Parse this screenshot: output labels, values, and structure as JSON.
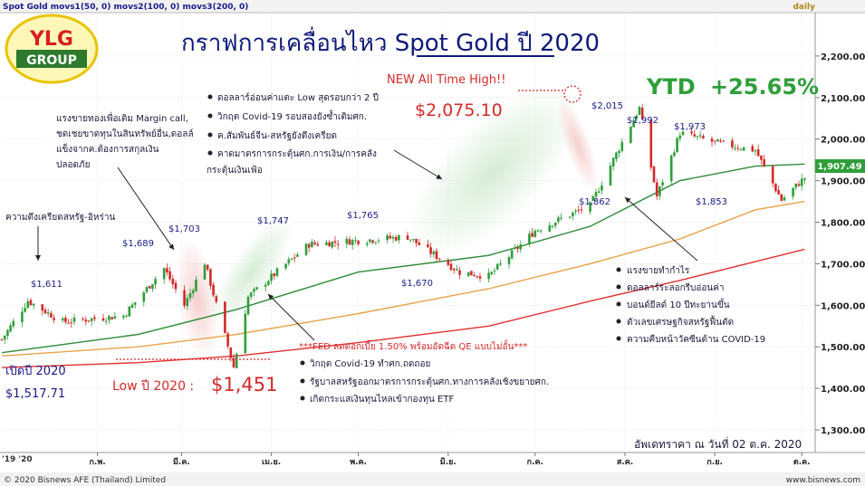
{
  "header": {
    "indicator_text": "Spot Gold  movs1(50, 0)  movs2(100, 0)  movs3(200, 0)",
    "period": "daily"
  },
  "logo": {
    "line1": "YLG",
    "line2": "GROUP"
  },
  "title": "กราฟการเคลื่อนไหว Spot Gold ปี 2020",
  "ytd": {
    "label": "YTD",
    "value": "+25.65%"
  },
  "current_price_tag": "1,907.49",
  "footer": {
    "copyright": "© 2020 Bisnews AFE (Thailand) Limited",
    "site": "www.bisnews.com",
    "updated": "อัพเดทราคา ณ วันที่ 02 ต.ค. 2020",
    "start_label": "'19 '20"
  },
  "annotations": {
    "ath_title": "NEW All Time High!!",
    "ath_value": "$2,075.10",
    "low_label": "Low ปี 2020  :",
    "low_value": "$1,451",
    "open_label": "เปิดปี 2020",
    "open_value": "$1,517.71",
    "tension": "ความตึงเครียดสหรัฐ-อิหร่าน",
    "margin_note": [
      "แรงขายทองเพื่อเติม Margin call,",
      "ชดเชยขาดทุนในสินทรัพย์อื่น,ดอลล์",
      "แข็งจากค.ต้องการสกุลเงิน",
      "ปลอดภัย"
    ],
    "top_bullets": [
      "ดอลลาร์อ่อนค่าแตะ Low สุดรอบกว่า 2 ปี",
      "วิกฤต Covid-19 รอบสองยังซ้ำเติมศก.",
      "ค.สัมพันธ์จีน-สหรัฐยังตึงเครียด",
      "คาดมาตรการกระตุ้นศก.การเงิน/การคลัง"
    ],
    "top_bullets_tail": "กระตุ้นเงินเฟ้อ",
    "fed_bullets": [
      "***FED ลดดอกเบี้ย 1.50% พร้อมอัดฉีด QE แบบไม่อั้น***",
      "วิกฤต Covid-19 ทำศก.ถดถอย",
      "รัฐบาลสหรัฐออกมาตรการกระตุ้นศก.ทางการคลังเชิงขยายศก.",
      "เกิดกระแสเงินทุนไหลเข้ากองทุน ETF"
    ],
    "right_bullets": [
      "แรงขายทำกำไร",
      "ดอลลาร์ระลอกรีบอ่อนค่า",
      "บอนด์ยีลด์ 10 ปีทะยานขึ้น",
      "ตัวเลขเศรษฐกิจสหรัฐฟื้นตัด",
      "ความคืบหน้าวัคซีนต้าน COVID-19"
    ],
    "price_labels": [
      "$1,611",
      "$1,689",
      "$1,703",
      "$1,747",
      "$1,765",
      "$1,670",
      "$2,015",
      "$1,992",
      "$1,973",
      "$1,862",
      "$1,853"
    ]
  },
  "chart_data": {
    "type": "line",
    "title": "กราฟการเคลื่อนไหว Spot Gold ปี 2020",
    "ylim": [
      1250,
      2300
    ],
    "y_ticks": [
      "2,200.00",
      "2,100.00",
      "2,000.00",
      "1,900.00",
      "1,800.00",
      "1,700.00",
      "1,600.00",
      "1,500.00",
      "1,400.00",
      "1,300.00"
    ],
    "x_ticks": [
      "ก.พ.",
      "มี.ค.",
      "เม.ย.",
      "พ.ค.",
      "มิ.ย.",
      "ก.ค.",
      "ส.ค.",
      "ก.ย.",
      "ต.ค."
    ],
    "grid": true,
    "colors": {
      "up": "#2f9e3a",
      "down": "#d42a2a",
      "ma1": "#2e8b37",
      "ma2": "#e8a34a",
      "ma3": "#e03030"
    },
    "series": [
      {
        "name": "movs1(50, 0)",
        "x": [
          "2019-12-30",
          "2020-02-15",
          "2020-03-20",
          "2020-05-01",
          "2020-06-15",
          "2020-07-20",
          "2020-08-20",
          "2020-09-15",
          "2020-10-02"
        ],
        "values": [
          1486,
          1530,
          1590,
          1680,
          1720,
          1790,
          1900,
          1935,
          1940
        ]
      },
      {
        "name": "movs2(100, 0)",
        "x": [
          "2019-12-30",
          "2020-02-15",
          "2020-03-20",
          "2020-05-01",
          "2020-06-15",
          "2020-07-20",
          "2020-08-20",
          "2020-09-15",
          "2020-10-02"
        ],
        "values": [
          1478,
          1500,
          1530,
          1580,
          1640,
          1700,
          1760,
          1830,
          1850
        ]
      },
      {
        "name": "movs3(200, 0)",
        "x": [
          "2019-12-30",
          "2020-02-15",
          "2020-03-20",
          "2020-05-01",
          "2020-06-15",
          "2020-07-20",
          "2020-08-20",
          "2020-09-15",
          "2020-10-02"
        ],
        "values": [
          1450,
          1462,
          1478,
          1510,
          1550,
          1610,
          1660,
          1705,
          1735
        ]
      },
      {
        "name": "Spot Gold",
        "x": [
          "2019-12-30",
          "2020-01-08",
          "2020-01-20",
          "2020-02-10",
          "2020-02-24",
          "2020-03-02",
          "2020-03-09",
          "2020-03-19",
          "2020-03-24",
          "2020-04-14",
          "2020-05-18",
          "2020-06-05",
          "2020-06-15",
          "2020-07-01",
          "2020-07-20",
          "2020-08-06",
          "2020-08-12",
          "2020-08-20",
          "2020-09-01",
          "2020-09-15",
          "2020-09-24",
          "2020-10-02"
        ],
        "values": [
          1517.71,
          1611,
          1560,
          1575,
          1689,
          1600,
          1703,
          1451,
          1620,
          1747,
          1765,
          1680,
          1670,
          1780,
          1840,
          2075.1,
          1862,
          2015,
          1992,
          1973,
          1853,
          1907.49
        ]
      }
    ]
  }
}
